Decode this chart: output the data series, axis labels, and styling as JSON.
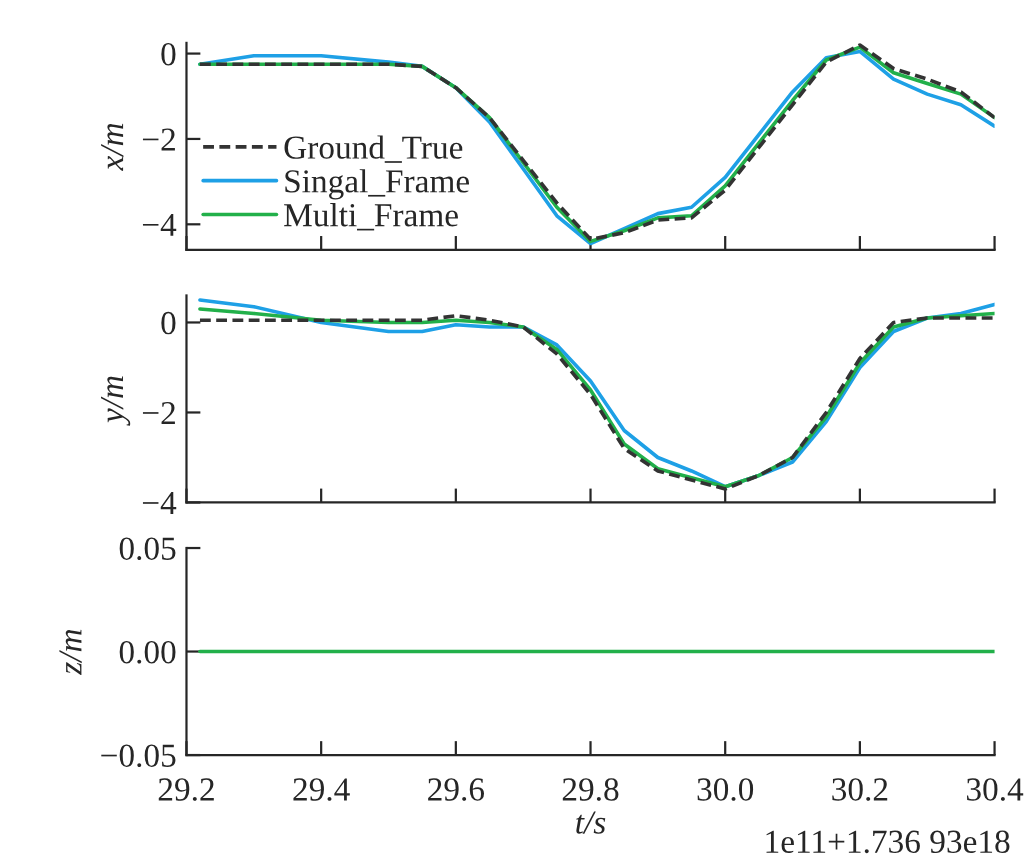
{
  "chart_data": [
    {
      "type": "line",
      "ylabel": "x/m",
      "xlim": [
        29.2,
        30.4
      ],
      "xticks": [
        29.2,
        29.4,
        29.6,
        29.8,
        30.0,
        30.2,
        30.4
      ],
      "ylim": [
        -4.6,
        0.25
      ],
      "yticks": [
        {
          "value": -4,
          "label": "−4"
        },
        {
          "value": -2,
          "label": "−2"
        },
        0
      ],
      "tick_labels": "y",
      "legend": "bottom left",
      "grid": false,
      "x": [
        29.22,
        29.3,
        29.4,
        29.5,
        29.55,
        29.6,
        29.65,
        29.7,
        29.75,
        29.8,
        29.85,
        29.9,
        29.95,
        30.0,
        30.05,
        30.1,
        30.15,
        30.2,
        30.25,
        30.3,
        30.35,
        30.4
      ],
      "series": [
        {
          "name": "Ground_True",
          "color": "#333333",
          "line_style": "dashed",
          "values": [
            -0.25,
            -0.25,
            -0.25,
            -0.25,
            -0.3,
            -0.8,
            -1.5,
            -2.5,
            -3.5,
            -4.35,
            -4.2,
            -3.9,
            -3.85,
            -3.2,
            -2.2,
            -1.2,
            -0.2,
            0.2,
            -0.35,
            -0.6,
            -0.9,
            -1.5
          ]
        },
        {
          "name": "Singal_Frame",
          "color": "#1ea0e6",
          "line_style": "solid",
          "values": [
            -0.25,
            -0.05,
            -0.05,
            -0.2,
            -0.3,
            -0.8,
            -1.6,
            -2.7,
            -3.8,
            -4.45,
            -4.1,
            -3.75,
            -3.6,
            -2.9,
            -1.9,
            -0.9,
            -0.1,
            0.05,
            -0.6,
            -0.95,
            -1.2,
            -1.7
          ]
        },
        {
          "name": "Multi_Frame",
          "color": "#22b04a",
          "line_style": "solid",
          "values": [
            -0.25,
            -0.25,
            -0.25,
            -0.25,
            -0.3,
            -0.8,
            -1.5,
            -2.55,
            -3.6,
            -4.4,
            -4.15,
            -3.85,
            -3.8,
            -3.1,
            -2.1,
            -1.1,
            -0.15,
            0.15,
            -0.45,
            -0.7,
            -0.95,
            -1.5
          ]
        }
      ]
    },
    {
      "type": "line",
      "ylabel": "y/m",
      "xlim": [
        29.2,
        30.4
      ],
      "xticks": [
        29.2,
        29.4,
        29.6,
        29.8,
        30.0,
        30.2,
        30.4
      ],
      "ylim": [
        -4,
        0.6
      ],
      "yticks": [
        {
          "value": -4,
          "label": "−4"
        },
        {
          "value": -2,
          "label": "−2"
        },
        0
      ],
      "tick_labels": "y",
      "grid": false,
      "x": [
        29.22,
        29.3,
        29.4,
        29.5,
        29.55,
        29.6,
        29.65,
        29.7,
        29.75,
        29.8,
        29.85,
        29.9,
        29.95,
        30.0,
        30.05,
        30.1,
        30.15,
        30.2,
        30.25,
        30.3,
        30.35,
        30.4
      ],
      "series": [
        {
          "color": "#333333",
          "line_style": "dashed",
          "values": [
            0.05,
            0.05,
            0.05,
            0.05,
            0.05,
            0.15,
            0.05,
            -0.1,
            -0.7,
            -1.6,
            -2.8,
            -3.3,
            -3.5,
            -3.7,
            -3.4,
            -3.0,
            -2.0,
            -0.8,
            0.0,
            0.1,
            0.1,
            0.1
          ]
        },
        {
          "color": "#1ea0e6",
          "line_style": "solid",
          "values": [
            0.5,
            0.35,
            0.0,
            -0.2,
            -0.2,
            -0.05,
            -0.1,
            -0.1,
            -0.5,
            -1.3,
            -2.4,
            -3.0,
            -3.3,
            -3.65,
            -3.4,
            -3.1,
            -2.2,
            -1.0,
            -0.2,
            0.1,
            0.2,
            0.4
          ]
        },
        {
          "color": "#22b04a",
          "line_style": "solid",
          "values": [
            0.3,
            0.2,
            0.05,
            0.0,
            0.0,
            0.05,
            0.0,
            -0.1,
            -0.6,
            -1.5,
            -2.7,
            -3.25,
            -3.45,
            -3.65,
            -3.4,
            -3.0,
            -2.1,
            -0.9,
            -0.1,
            0.1,
            0.15,
            0.2
          ]
        }
      ]
    },
    {
      "type": "line",
      "ylabel": "z/m",
      "xlabel": "t/s",
      "xlim": [
        29.2,
        30.4
      ],
      "xticks": [
        {
          "value": 29.2,
          "label": "29.2"
        },
        {
          "value": 29.4,
          "label": "29.4"
        },
        {
          "value": 29.6,
          "label": "29.6"
        },
        {
          "value": 29.8,
          "label": "29.8"
        },
        {
          "value": 30.0,
          "label": "30.0"
        },
        {
          "value": 30.2,
          "label": "30.2"
        },
        {
          "value": 30.4,
          "label": "30.4"
        }
      ],
      "ylim": [
        -0.05,
        0.05
      ],
      "yticks": [
        {
          "value": -0.05,
          "label": "−0.05"
        },
        {
          "value": 0,
          "label": "0.00"
        },
        {
          "value": 0.05,
          "label": "0.05"
        }
      ],
      "grid": false,
      "annotations": [
        "1e11+1.736 93e18"
      ],
      "x": [
        29.22,
        30.4
      ],
      "series": [
        {
          "color": "#22b04a",
          "line_style": "solid",
          "values": [
            0,
            0
          ]
        }
      ]
    }
  ]
}
